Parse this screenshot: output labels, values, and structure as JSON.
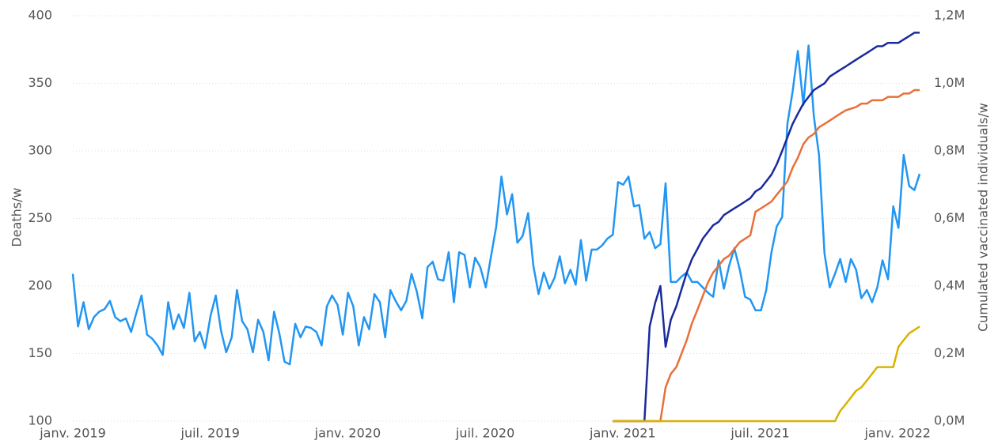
{
  "chart_data": {
    "type": "line",
    "y_label": "Deaths/w",
    "y2_label": "Cumulated vaccinated individuals/w",
    "xlim": [
      2019,
      2022.08
    ],
    "xticks": [
      {
        "value": 2019,
        "label": "janv. 2019"
      },
      {
        "value": 2019.5,
        "label": "juil. 2019"
      },
      {
        "value": 2020,
        "label": "janv. 2020"
      },
      {
        "value": 2020.5,
        "label": "juil. 2020"
      },
      {
        "value": 2021,
        "label": "janv. 2021"
      },
      {
        "value": 2021.5,
        "label": "juil. 2021"
      },
      {
        "value": 2022,
        "label": "janv. 2022"
      }
    ],
    "ylim": [
      100,
      400
    ],
    "yticks": [
      100,
      150,
      200,
      250,
      300,
      350,
      400
    ],
    "y2lim": [
      0,
      1200000
    ],
    "y2ticks": [
      {
        "value": 0,
        "label": "0,0M"
      },
      {
        "value": 200000,
        "label": "0,2M"
      },
      {
        "value": 400000,
        "label": "0,4M"
      },
      {
        "value": 600000,
        "label": "0,6M"
      },
      {
        "value": 800000,
        "label": "0,8M"
      },
      {
        "value": 1000000,
        "label": "1,0M"
      },
      {
        "value": 1200000,
        "label": "1,2M"
      }
    ],
    "grid": true,
    "x": [
      2019.0,
      2019.019,
      2019.039,
      2019.058,
      2019.077,
      2019.096,
      2019.116,
      2019.135,
      2019.154,
      2019.173,
      2019.193,
      2019.212,
      2019.231,
      2019.25,
      2019.27,
      2019.289,
      2019.308,
      2019.327,
      2019.347,
      2019.366,
      2019.385,
      2019.404,
      2019.424,
      2019.443,
      2019.462,
      2019.481,
      2019.501,
      2019.52,
      2019.539,
      2019.558,
      2019.578,
      2019.597,
      2019.616,
      2019.635,
      2019.655,
      2019.674,
      2019.693,
      2019.712,
      2019.732,
      2019.751,
      2019.77,
      2019.789,
      2019.809,
      2019.828,
      2019.847,
      2019.866,
      2019.886,
      2019.905,
      2019.924,
      2019.943,
      2019.963,
      2019.982,
      2020.001,
      2020.02,
      2020.04,
      2020.059,
      2020.078,
      2020.097,
      2020.117,
      2020.136,
      2020.155,
      2020.174,
      2020.194,
      2020.213,
      2020.232,
      2020.251,
      2020.271,
      2020.29,
      2020.309,
      2020.328,
      2020.348,
      2020.367,
      2020.386,
      2020.405,
      2020.425,
      2020.444,
      2020.463,
      2020.482,
      2020.502,
      2020.521,
      2020.54,
      2020.559,
      2020.579,
      2020.598,
      2020.617,
      2020.636,
      2020.656,
      2020.675,
      2020.694,
      2020.713,
      2020.733,
      2020.752,
      2020.771,
      2020.79,
      2020.81,
      2020.829,
      2020.848,
      2020.867,
      2020.887,
      2020.906,
      2020.925,
      2020.944,
      2020.964,
      2020.983,
      2021.002,
      2021.021,
      2021.041,
      2021.06,
      2021.079,
      2021.098,
      2021.118,
      2021.137,
      2021.156,
      2021.175,
      2021.195,
      2021.214,
      2021.233,
      2021.252,
      2021.272,
      2021.291,
      2021.31,
      2021.329,
      2021.349,
      2021.368,
      2021.387,
      2021.406,
      2021.426,
      2021.445,
      2021.464,
      2021.483,
      2021.503,
      2021.522,
      2021.541,
      2021.56,
      2021.58,
      2021.599,
      2021.618,
      2021.637,
      2021.657,
      2021.676,
      2021.695,
      2021.714,
      2021.734,
      2021.753,
      2021.772,
      2021.791,
      2021.811,
      2021.83,
      2021.849,
      2021.868,
      2021.888,
      2021.907,
      2021.926,
      2021.945,
      2021.965,
      2021.984,
      2022.003,
      2022.022,
      2022.042,
      2022.061,
      2022.08
    ],
    "series": [
      {
        "color": "#2196f3",
        "axis": "y",
        "values": [
          209,
          170,
          188,
          168,
          177,
          181,
          183,
          189,
          177,
          174,
          176,
          166,
          180,
          193,
          164,
          161,
          156,
          149,
          188,
          168,
          179,
          169,
          195,
          159,
          166,
          154,
          178,
          193,
          167,
          151,
          162,
          197,
          174,
          168,
          151,
          175,
          166,
          145,
          181,
          165,
          144,
          142,
          172,
          162,
          170,
          169,
          166,
          156,
          185,
          193,
          186,
          164,
          195,
          185,
          156,
          177,
          168,
          194,
          188,
          162,
          197,
          189,
          182,
          189,
          209,
          196,
          176,
          214,
          218,
          205,
          204,
          225,
          188,
          225,
          223,
          199,
          221,
          214,
          199,
          222,
          244,
          281,
          253,
          268,
          232,
          237,
          254,
          215,
          194,
          210,
          198,
          206,
          222,
          202,
          212,
          201,
          234,
          204,
          227,
          227,
          230,
          235,
          238,
          277,
          275,
          281,
          259,
          260,
          235,
          240,
          228,
          231,
          276,
          203,
          203,
          207,
          210,
          203,
          203,
          199,
          195,
          192,
          219,
          198,
          215,
          228,
          212,
          192,
          190,
          182,
          182,
          197,
          225,
          244,
          251,
          320,
          344,
          374,
          334,
          378,
          326,
          297,
          224,
          199,
          209,
          220,
          203,
          220,
          212,
          191,
          197,
          188,
          199,
          219,
          205,
          259,
          243,
          297,
          274,
          271,
          283
        ]
      },
      {
        "color": "#1a2a9c",
        "axis": "y2",
        "values": [
          null,
          null,
          null,
          null,
          null,
          null,
          null,
          null,
          null,
          null,
          null,
          null,
          null,
          null,
          null,
          null,
          null,
          null,
          null,
          null,
          null,
          null,
          null,
          null,
          null,
          null,
          null,
          null,
          null,
          null,
          null,
          null,
          null,
          null,
          null,
          null,
          null,
          null,
          null,
          null,
          null,
          null,
          null,
          null,
          null,
          null,
          null,
          null,
          null,
          null,
          null,
          null,
          null,
          null,
          null,
          null,
          null,
          null,
          null,
          null,
          null,
          null,
          null,
          null,
          null,
          null,
          null,
          null,
          null,
          null,
          null,
          null,
          null,
          null,
          null,
          null,
          null,
          null,
          null,
          null,
          null,
          null,
          null,
          null,
          null,
          null,
          null,
          null,
          null,
          null,
          null,
          null,
          null,
          null,
          null,
          null,
          null,
          null,
          null,
          null,
          null,
          null,
          0,
          0,
          0,
          0,
          0,
          0,
          0,
          280000,
          350000,
          400000,
          220000,
          300000,
          340000,
          390000,
          440000,
          480000,
          510000,
          540000,
          560000,
          580000,
          590000,
          610000,
          620000,
          630000,
          640000,
          650000,
          660000,
          680000,
          690000,
          710000,
          730000,
          760000,
          800000,
          840000,
          880000,
          910000,
          940000,
          960000,
          980000,
          990000,
          1000000,
          1020000,
          1030000,
          1040000,
          1050000,
          1060000,
          1070000,
          1080000,
          1090000,
          1100000,
          1110000,
          1110000,
          1120000,
          1120000,
          1120000,
          1130000,
          1140000,
          1150000,
          1150000
        ]
      },
      {
        "color": "#e8703a",
        "axis": "y2",
        "values": [
          null,
          null,
          null,
          null,
          null,
          null,
          null,
          null,
          null,
          null,
          null,
          null,
          null,
          null,
          null,
          null,
          null,
          null,
          null,
          null,
          null,
          null,
          null,
          null,
          null,
          null,
          null,
          null,
          null,
          null,
          null,
          null,
          null,
          null,
          null,
          null,
          null,
          null,
          null,
          null,
          null,
          null,
          null,
          null,
          null,
          null,
          null,
          null,
          null,
          null,
          null,
          null,
          null,
          null,
          null,
          null,
          null,
          null,
          null,
          null,
          null,
          null,
          null,
          null,
          null,
          null,
          null,
          null,
          null,
          null,
          null,
          null,
          null,
          null,
          null,
          null,
          null,
          null,
          null,
          null,
          null,
          null,
          null,
          null,
          null,
          null,
          null,
          null,
          null,
          null,
          null,
          null,
          null,
          null,
          null,
          null,
          null,
          null,
          null,
          null,
          null,
          null,
          0,
          0,
          0,
          0,
          0,
          0,
          0,
          0,
          0,
          0,
          100000,
          140000,
          160000,
          200000,
          240000,
          290000,
          330000,
          370000,
          410000,
          440000,
          460000,
          480000,
          490000,
          510000,
          530000,
          540000,
          550000,
          620000,
          630000,
          640000,
          650000,
          670000,
          690000,
          710000,
          750000,
          780000,
          820000,
          840000,
          850000,
          870000,
          880000,
          890000,
          900000,
          910000,
          920000,
          925000,
          930000,
          940000,
          940000,
          950000,
          950000,
          950000,
          960000,
          960000,
          960000,
          970000,
          970000,
          980000,
          980000
        ]
      },
      {
        "color": "#d9b300",
        "axis": "y2",
        "values": [
          null,
          null,
          null,
          null,
          null,
          null,
          null,
          null,
          null,
          null,
          null,
          null,
          null,
          null,
          null,
          null,
          null,
          null,
          null,
          null,
          null,
          null,
          null,
          null,
          null,
          null,
          null,
          null,
          null,
          null,
          null,
          null,
          null,
          null,
          null,
          null,
          null,
          null,
          null,
          null,
          null,
          null,
          null,
          null,
          null,
          null,
          null,
          null,
          null,
          null,
          null,
          null,
          null,
          null,
          null,
          null,
          null,
          null,
          null,
          null,
          null,
          null,
          null,
          null,
          null,
          null,
          null,
          null,
          null,
          null,
          null,
          null,
          null,
          null,
          null,
          null,
          null,
          null,
          null,
          null,
          null,
          null,
          null,
          null,
          null,
          null,
          null,
          null,
          null,
          null,
          null,
          null,
          null,
          null,
          null,
          null,
          null,
          null,
          null,
          null,
          null,
          null,
          0,
          0,
          0,
          0,
          0,
          0,
          0,
          0,
          0,
          0,
          0,
          0,
          0,
          0,
          0,
          0,
          0,
          0,
          0,
          0,
          0,
          0,
          0,
          0,
          0,
          0,
          0,
          0,
          0,
          0,
          0,
          0,
          0,
          0,
          0,
          0,
          0,
          0,
          0,
          0,
          0,
          0,
          0,
          30000,
          50000,
          70000,
          90000,
          100000,
          120000,
          140000,
          160000,
          160000,
          160000,
          160000,
          220000,
          240000,
          260000,
          270000,
          280000
        ]
      }
    ]
  }
}
